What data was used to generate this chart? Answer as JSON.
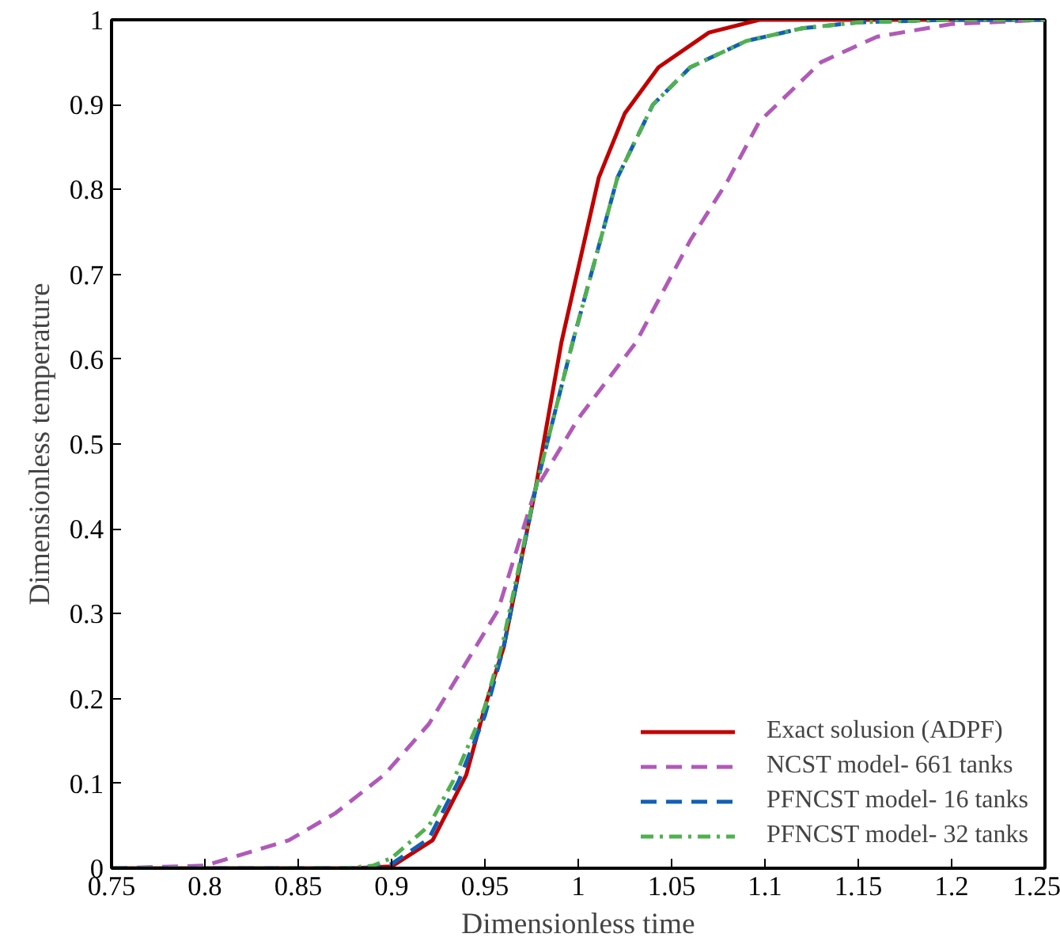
{
  "chart_data": {
    "type": "line",
    "xlabel": "Dimensionless time",
    "ylabel": "Dimensionless temperature",
    "xlim": [
      0.75,
      1.25
    ],
    "ylim": [
      0,
      1
    ],
    "xticks": [
      0.75,
      0.8,
      0.85,
      0.9,
      0.95,
      1,
      1.05,
      1.1,
      1.15,
      1.2,
      1.25
    ],
    "yticks": [
      0,
      0.1,
      0.2,
      0.3,
      0.4,
      0.5,
      0.6,
      0.7,
      0.8,
      0.9,
      1
    ],
    "grid": false,
    "legend": "bottom right",
    "series": [
      {
        "name": "Exact solusion (ADPF)",
        "color": "#c00000",
        "line_style": "solid",
        "x": [
          0.75,
          0.88,
          0.9,
          0.922,
          0.94,
          0.95,
          0.96,
          0.977,
          0.991,
          1.011,
          1.025,
          1.043,
          1.07,
          1.097,
          1.25
        ],
        "values": [
          0,
          0,
          0.002,
          0.033,
          0.11,
          0.19,
          0.26,
          0.446,
          0.62,
          0.814,
          0.89,
          0.944,
          0.985,
          1,
          1
        ]
      },
      {
        "name": "NCST model- 661 tanks",
        "color": "#b05ab8",
        "line_style": "dashed",
        "x": [
          0.75,
          0.8,
          0.845,
          0.87,
          0.896,
          0.92,
          0.957,
          0.977,
          1.0,
          1.031,
          1.06,
          1.08,
          1.097,
          1.13,
          1.16,
          1.2,
          1.25
        ],
        "values": [
          0,
          0.003,
          0.033,
          0.065,
          0.11,
          0.17,
          0.304,
          0.446,
          0.53,
          0.62,
          0.74,
          0.81,
          0.88,
          0.95,
          0.98,
          0.995,
          1
        ]
      },
      {
        "name": "PFNCST model- 16 tanks",
        "color": "#1060b8",
        "line_style": "dashed",
        "x": [
          0.75,
          0.885,
          0.9,
          0.92,
          0.936,
          0.95,
          0.96,
          0.977,
          0.997,
          1.021,
          1.04,
          1.06,
          1.09,
          1.12,
          1.15,
          1.2,
          1.25
        ],
        "values": [
          0,
          0,
          0.005,
          0.035,
          0.103,
          0.18,
          0.26,
          0.446,
          0.62,
          0.814,
          0.9,
          0.944,
          0.975,
          0.99,
          0.997,
          1,
          1
        ]
      },
      {
        "name": "PFNCST model- 32 tanks",
        "color": "#50b050",
        "line_style": "dashdot",
        "x": [
          0.75,
          0.875,
          0.89,
          0.9,
          0.92,
          0.933,
          0.95,
          0.96,
          0.977,
          0.997,
          1.021,
          1.04,
          1.06,
          1.09,
          1.12,
          1.15,
          1.2,
          1.25
        ],
        "values": [
          0,
          0,
          0.003,
          0.012,
          0.05,
          0.103,
          0.19,
          0.27,
          0.446,
          0.62,
          0.814,
          0.9,
          0.944,
          0.975,
          0.99,
          0.997,
          1,
          1
        ]
      }
    ]
  }
}
